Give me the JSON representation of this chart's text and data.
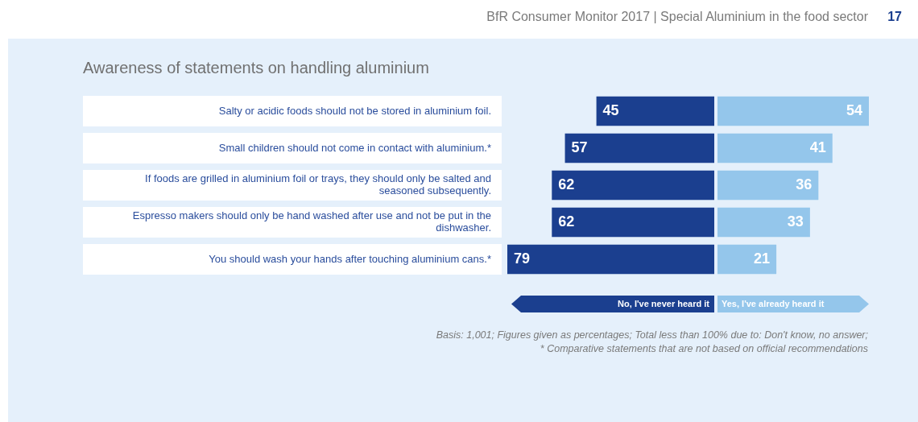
{
  "chart_data": [
    {
      "type": "bar",
      "orientation": "horizontal",
      "title": "Awareness of statements on handling aluminium",
      "subtitle": "BfR Consumer Monitor 2017 | Special Aluminium in the food sector",
      "categories": [
        "Salty or acidic foods should not be stored in aluminium foil.",
        "Small children should not come in contact with aluminium.*",
        "If foods are grilled in aluminium foil or trays, they should only be salted and seasoned subsequently.",
        "Espresso makers should only be hand washed after use and not be put in the dishwasher.",
        "You should wash your hands after touching aluminium cans.*"
      ],
      "series": [
        {
          "name": "No, I've never heard it",
          "color": "#1b3f8f",
          "values": [
            45,
            57,
            62,
            62,
            79
          ]
        }
      ],
      "xlim": [
        79,
        0
      ],
      "tick_labels": "y",
      "grid": false,
      "legend": "bottom",
      "data_labels": true,
      "annotations": [
        "17",
        "Basis: 1,001; Figures given as percentages; Total less than 100% due to: Don't know, no answer;",
        "* Comparative statements that are not based on official recommendations"
      ]
    },
    {
      "type": "bar",
      "orientation": "horizontal",
      "categories": [
        null,
        null,
        null,
        null,
        null
      ],
      "series": [
        {
          "name": "Yes, I've already heard it",
          "color": "#94c6eb",
          "values": [
            54,
            41,
            36,
            33,
            21
          ]
        }
      ],
      "tick_labels": false,
      "grid": false,
      "legend": "bottom",
      "data_labels": true
    }
  ]
}
